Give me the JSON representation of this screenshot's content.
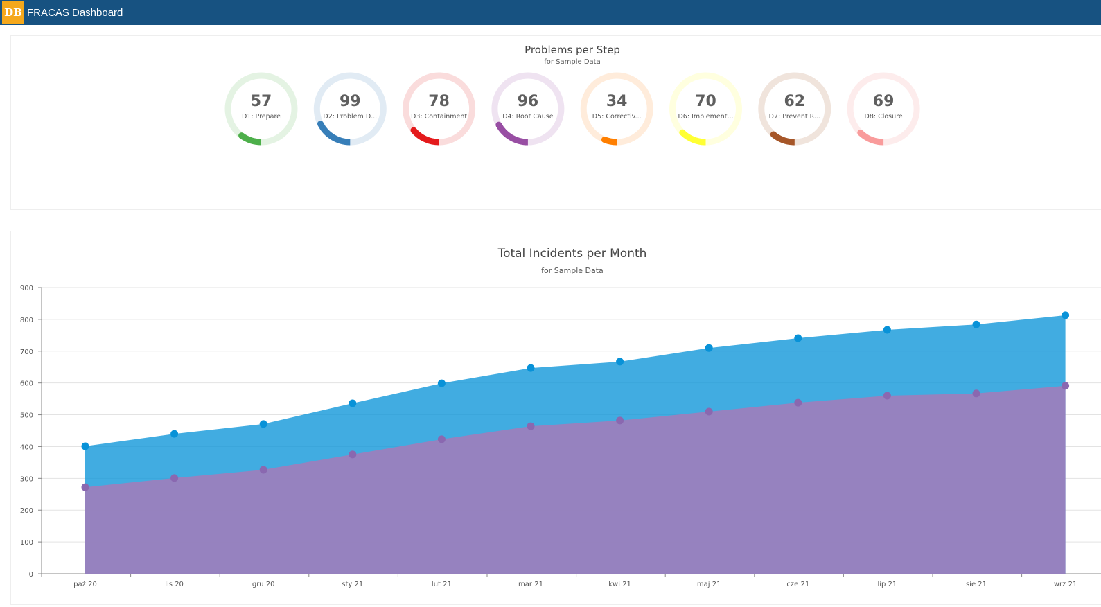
{
  "header": {
    "logo": "DB",
    "title": "FRACAS Dashboard",
    "color": "#175281"
  },
  "steps": {
    "title": "Problems per Step",
    "subtitle": "for Sample Data",
    "items": [
      {
        "value": 57,
        "label": "D1: Prepare",
        "color": "#4daf4a",
        "track": "#e4f3e3"
      },
      {
        "value": 99,
        "label": "D2: Problem D...",
        "color": "#377eb8",
        "track": "#e1ebf4"
      },
      {
        "value": 78,
        "label": "D3: Containment",
        "color": "#e41a1c",
        "track": "#fadcdc"
      },
      {
        "value": 96,
        "label": "D4: Root Cause",
        "color": "#984ea3",
        "track": "#efe3f1"
      },
      {
        "value": 34,
        "label": "D5: Correctiv...",
        "color": "#ff7f00",
        "track": "#ffecdb"
      },
      {
        "value": 70,
        "label": "D6: Implement...",
        "color": "#ffff33",
        "track": "#ffffdf"
      },
      {
        "value": 62,
        "label": "D7: Prevent R...",
        "color": "#a65628",
        "track": "#f0e4dc"
      },
      {
        "value": 69,
        "label": "D8: Closure",
        "color": "#f99b9b",
        "track": "#fdecec"
      }
    ]
  },
  "chart_data": {
    "type": "area",
    "title": "Total Incidents per Month",
    "subtitle": "for Sample Data",
    "categories": [
      "paź 20",
      "lis 20",
      "gru 20",
      "sty 21",
      "lut 21",
      "mar 21",
      "kwi 21",
      "maj 21",
      "cze 21",
      "lip 21",
      "sie 21",
      "wrz 21"
    ],
    "ylim": [
      0,
      900
    ],
    "yticks": [
      0,
      100,
      200,
      300,
      400,
      500,
      600,
      700,
      800,
      900
    ],
    "grid": true,
    "series": [
      {
        "values": [
          401,
          440,
          471,
          536,
          599,
          647,
          667,
          710,
          741,
          767,
          784,
          813
        ],
        "color": "#0b95d9"
      },
      {
        "values": [
          272,
          301,
          327,
          375,
          423,
          464,
          482,
          510,
          538,
          560,
          567,
          591
        ],
        "color": "#9b7fbd"
      }
    ]
  }
}
